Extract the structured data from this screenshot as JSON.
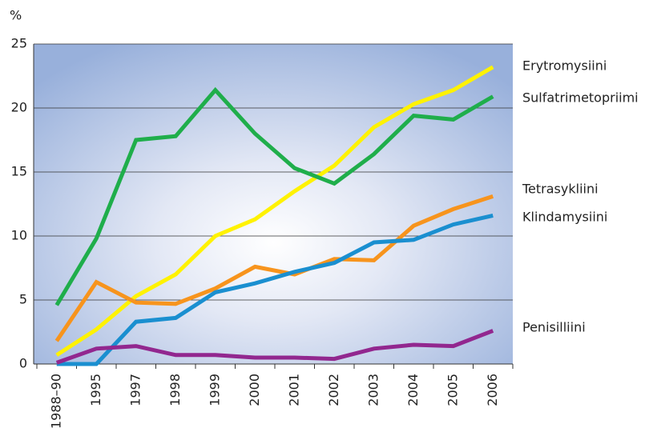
{
  "chart_data": {
    "type": "line",
    "y_label": "%",
    "categories": [
      "1988–90",
      "1995",
      "1997",
      "1998",
      "1999",
      "2000",
      "2001",
      "2002",
      "2003",
      "2004",
      "2005",
      "2006"
    ],
    "series": [
      {
        "name": "Erytromysiini",
        "color": "#fff200",
        "values": [
          0.7,
          2.7,
          5.3,
          7.0,
          10.0,
          11.3,
          13.5,
          15.5,
          18.5,
          20.3,
          21.4,
          23.2
        ]
      },
      {
        "name": "Sulfatrimetopriimi",
        "color": "#1fae4b",
        "values": [
          4.6,
          9.8,
          17.5,
          17.8,
          21.4,
          18.0,
          15.3,
          14.1,
          16.4,
          19.4,
          19.1,
          20.9
        ]
      },
      {
        "name": "Tetrasykliini",
        "color": "#f7941d",
        "values": [
          1.8,
          6.4,
          4.8,
          4.7,
          5.9,
          7.6,
          7.0,
          8.2,
          8.1,
          10.8,
          12.1,
          13.1
        ]
      },
      {
        "name": "Klindamysiini",
        "color": "#1a8fd0",
        "values": [
          0,
          0,
          3.3,
          3.6,
          5.6,
          6.3,
          7.2,
          7.9,
          9.5,
          9.7,
          10.9,
          11.6
        ]
      },
      {
        "name": "Penisilliini",
        "color": "#92278f",
        "values": [
          0.1,
          1.2,
          1.4,
          0.7,
          0.7,
          0.5,
          0.5,
          0.4,
          1.2,
          1.5,
          1.4,
          2.6
        ]
      }
    ],
    "ylim": [
      0,
      25
    ],
    "yticks": [
      0,
      5,
      10,
      15,
      20,
      25
    ],
    "grid": true
  }
}
